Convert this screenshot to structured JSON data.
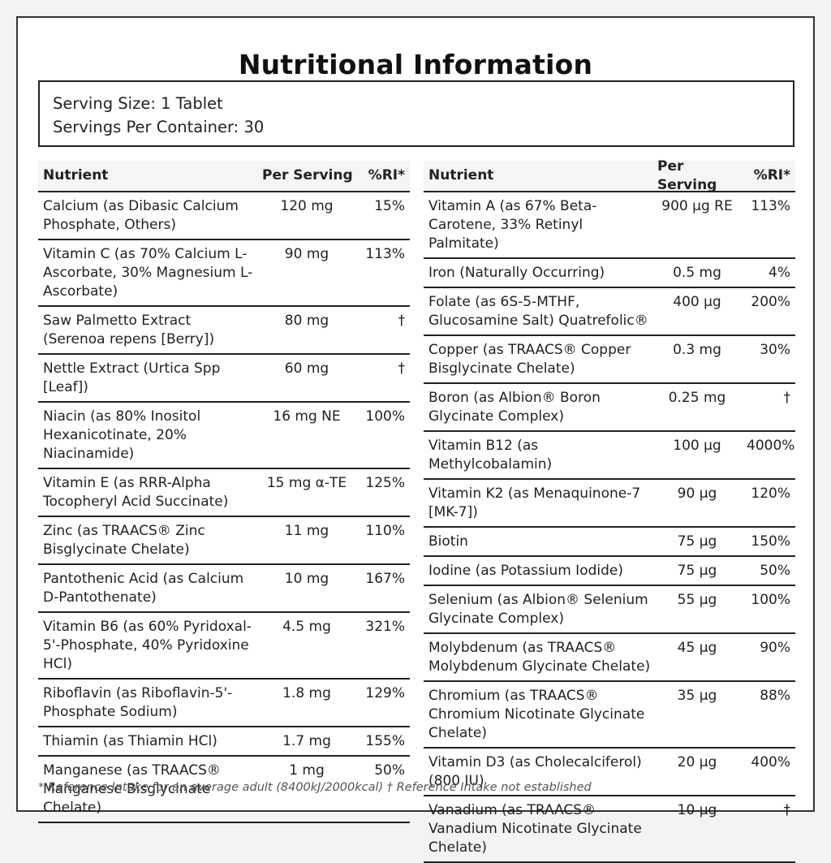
{
  "title": "Nutritional Information",
  "serving": {
    "size": "Serving Size: 1 Tablet",
    "per_container": "Servings Per Container: 30"
  },
  "headers": {
    "nutrient": "Nutrient",
    "per_serving": "Per Serving",
    "ri": "%RI*"
  },
  "left_rows": [
    {
      "name": "Calcium (as Dibasic Calcium Phosphate, Others)",
      "amount": "120 mg",
      "ri": "15%"
    },
    {
      "name": "Vitamin C (as 70% Calcium L-Ascorbate, 30% Magnesium L-Ascorbate)",
      "amount": "90 mg",
      "ri": "113%"
    },
    {
      "name": "Saw Palmetto Extract (Serenoa repens [Berry])",
      "amount": "80 mg",
      "ri": "†"
    },
    {
      "name": "Nettle Extract (Urtica Spp [Leaf])",
      "amount": "60 mg",
      "ri": "†"
    },
    {
      "name": "Niacin (as 80% Inositol Hexanicotinate, 20% Niacinamide)",
      "amount": "16 mg NE",
      "ri": "100%"
    },
    {
      "name": "Vitamin E (as RRR-Alpha Tocopheryl Acid Succinate)",
      "amount": "15 mg α-TE",
      "ri": "125%"
    },
    {
      "name": "Zinc (as TRAACS® Zinc Bisglycinate Chelate)",
      "amount": "11 mg",
      "ri": "110%"
    },
    {
      "name": "Pantothenic Acid (as Calcium D-Pantothenate)",
      "amount": "10 mg",
      "ri": "167%"
    },
    {
      "name": "Vitamin B6 (as 60% Pyridoxal-5'-Phosphate, 40% Pyridoxine HCl)",
      "amount": "4.5 mg",
      "ri": "321%"
    },
    {
      "name": "Riboflavin (as Riboflavin-5'-Phosphate Sodium)",
      "amount": "1.8 mg",
      "ri": "129%"
    },
    {
      "name": "Thiamin (as Thiamin HCl)",
      "amount": "1.7 mg",
      "ri": "155%"
    },
    {
      "name": "Manganese (as TRAACS® Manganese Bisglycinate Chelate)",
      "amount": "1 mg",
      "ri": "50%"
    }
  ],
  "right_rows": [
    {
      "name": "Vitamin A (as 67% Beta-Carotene, 33% Retinyl Palmitate)",
      "amount": "900 µg RE",
      "ri": "113%"
    },
    {
      "name": "Iron (Naturally Occurring)",
      "amount": "0.5 mg",
      "ri": "4%"
    },
    {
      "name": "Folate (as 6S-5-MTHF, Glucosamine Salt) Quatrefolic®",
      "amount": "400 µg",
      "ri": "200%"
    },
    {
      "name": "Copper (as TRAACS® Copper Bisglycinate Chelate)",
      "amount": "0.3 mg",
      "ri": "30%"
    },
    {
      "name": "Boron (as Albion® Boron Glycinate Complex)",
      "amount": "0.25 mg",
      "ri": "†"
    },
    {
      "name": "Vitamin B12 (as Methylcobalamin)",
      "amount": "100 µg",
      "ri": "4000%"
    },
    {
      "name": "Vitamin K2 (as Menaquinone-7 [MK-7])",
      "amount": "90 µg",
      "ri": "120%"
    },
    {
      "name": "Biotin",
      "amount": "75 µg",
      "ri": "150%"
    },
    {
      "name": "Iodine (as Potassium Iodide)",
      "amount": "75 µg",
      "ri": "50%"
    },
    {
      "name": "Selenium (as Albion® Selenium Glycinate Complex)",
      "amount": "55 µg",
      "ri": "100%"
    },
    {
      "name": "Molybdenum (as TRAACS® Molybdenum Glycinate Chelate)",
      "amount": "45 µg",
      "ri": "90%"
    },
    {
      "name": "Chromium (as TRAACS® Chromium Nicotinate Glycinate Chelate)",
      "amount": "35 µg",
      "ri": "88%"
    },
    {
      "name": "Vitamin D3 (as Cholecalciferol) (800 IU)",
      "amount": "20 µg",
      "ri": "400%"
    },
    {
      "name": "Vanadium (as TRAACS® Vanadium Nicotinate Glycinate Chelate)",
      "amount": "10 µg",
      "ri": "†"
    }
  ],
  "footnote": "* Reference Intake for an average adult (8400kJ/2000kcal) † Reference Intake not established"
}
